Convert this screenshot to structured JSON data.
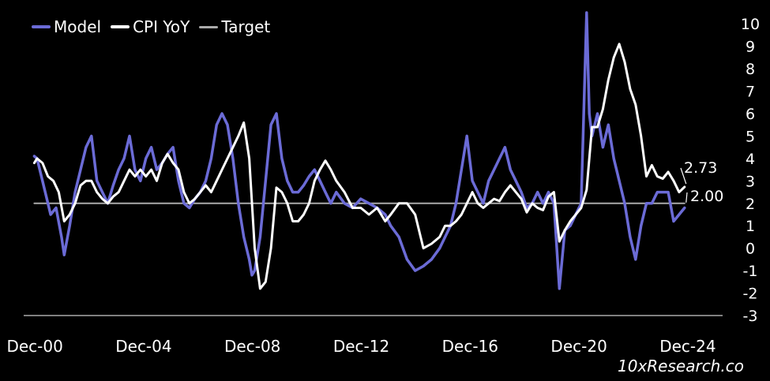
{
  "legend": {
    "model_label": "Model",
    "cpi_label": "CPI YoY",
    "target_label": "Target"
  },
  "watermark": "10xResearch.co",
  "chart_data": {
    "type": "line",
    "title": "",
    "xlabel": "",
    "ylabel": "",
    "x_tick_labels": [
      "Dec-00",
      "Dec-04",
      "Dec-08",
      "Dec-12",
      "Dec-16",
      "Dec-20",
      "Dec-24"
    ],
    "x_tick_years": [
      2000.92,
      2004.92,
      2008.92,
      2012.92,
      2016.92,
      2020.92,
      2024.92
    ],
    "xlim": [
      2000.8,
      2026.2
    ],
    "y_ticks": [
      -3,
      -2,
      -1,
      0,
      1,
      2,
      3,
      4,
      5,
      6,
      7,
      8,
      9,
      10
    ],
    "ylim": [
      -3,
      10.5
    ],
    "y_axis_side": "right",
    "grid": false,
    "legend_position": "top-left",
    "colors": {
      "model": "#6b6bd6",
      "cpi": "#ffffff",
      "target": "#aaaaaa",
      "background": "#000000"
    },
    "annotations": [
      {
        "text": "2.73",
        "x": 2024.6,
        "y": 3.3
      },
      {
        "text": "2.00",
        "x": 2024.6,
        "y": 2.5
      }
    ],
    "series": [
      {
        "name": "Model",
        "x": [
          2000.9,
          2001.0,
          2001.2,
          2001.4,
          2001.5,
          2001.7,
          2001.9,
          2002.0,
          2002.2,
          2002.4,
          2002.6,
          2002.8,
          2003.0,
          2003.2,
          2003.4,
          2003.6,
          2003.8,
          2004.0,
          2004.2,
          2004.4,
          2004.6,
          2004.8,
          2005.0,
          2005.2,
          2005.4,
          2005.6,
          2005.8,
          2006.0,
          2006.2,
          2006.4,
          2006.6,
          2006.8,
          2007.0,
          2007.2,
          2007.4,
          2007.6,
          2007.8,
          2008.0,
          2008.2,
          2008.4,
          2008.6,
          2008.8,
          2008.9,
          2009.0,
          2009.2,
          2009.4,
          2009.6,
          2009.8,
          2010.0,
          2010.2,
          2010.4,
          2010.6,
          2010.8,
          2011.0,
          2011.2,
          2011.4,
          2011.6,
          2011.8,
          2012.0,
          2012.3,
          2012.6,
          2012.9,
          2013.2,
          2013.5,
          2013.8,
          2014.0,
          2014.3,
          2014.6,
          2014.9,
          2015.2,
          2015.5,
          2015.8,
          2016.0,
          2016.2,
          2016.4,
          2016.6,
          2016.8,
          2017.0,
          2017.2,
          2017.4,
          2017.6,
          2017.8,
          2018.0,
          2018.2,
          2018.4,
          2018.6,
          2018.8,
          2019.0,
          2019.2,
          2019.4,
          2019.6,
          2019.8,
          2020.0,
          2020.2,
          2020.4,
          2020.6,
          2020.8,
          2021.0,
          2021.2,
          2021.3,
          2021.4,
          2021.6,
          2021.8,
          2022.0,
          2022.2,
          2022.4,
          2022.6,
          2022.8,
          2023.0,
          2023.2,
          2023.4,
          2023.6,
          2023.8,
          2024.0,
          2024.2,
          2024.4,
          2024.6,
          2024.8
        ],
        "values": [
          4.1,
          4.0,
          3.0,
          2.0,
          1.5,
          1.8,
          0.5,
          -0.3,
          1.0,
          2.5,
          3.5,
          4.5,
          5.0,
          3.0,
          2.5,
          2.0,
          2.8,
          3.5,
          4.0,
          5.0,
          3.5,
          3.0,
          4.0,
          4.5,
          3.5,
          3.8,
          4.2,
          4.5,
          3.0,
          2.0,
          1.8,
          2.2,
          2.5,
          3.0,
          4.0,
          5.5,
          6.0,
          5.5,
          4.0,
          2.0,
          0.5,
          -0.5,
          -1.2,
          -1.0,
          0.5,
          3.0,
          5.5,
          6.0,
          4.0,
          3.0,
          2.5,
          2.5,
          2.8,
          3.2,
          3.5,
          3.0,
          2.5,
          2.0,
          2.5,
          2.0,
          1.8,
          2.2,
          2.0,
          1.8,
          1.5,
          1.0,
          0.5,
          -0.5,
          -1.0,
          -0.8,
          -0.5,
          0.0,
          0.5,
          1.0,
          2.0,
          3.5,
          5.0,
          3.0,
          2.5,
          2.0,
          3.0,
          3.5,
          4.0,
          4.5,
          3.5,
          3.0,
          2.5,
          1.8,
          2.0,
          2.5,
          2.0,
          2.5,
          2.0,
          -1.8,
          0.8,
          1.0,
          1.5,
          2.0,
          10.5,
          6.0,
          5.0,
          6.0,
          4.5,
          5.5,
          4.0,
          3.0,
          2.0,
          0.5,
          -0.5,
          1.0,
          2.0,
          2.0,
          2.5,
          2.5,
          2.5,
          1.2,
          1.5,
          1.8
        ]
      },
      {
        "name": "CPI YoY",
        "x": [
          2000.9,
          2001.0,
          2001.2,
          2001.4,
          2001.6,
          2001.8,
          2002.0,
          2002.2,
          2002.4,
          2002.6,
          2002.8,
          2003.0,
          2003.2,
          2003.4,
          2003.6,
          2003.8,
          2004.0,
          2004.2,
          2004.4,
          2004.6,
          2004.8,
          2005.0,
          2005.2,
          2005.4,
          2005.6,
          2005.8,
          2006.0,
          2006.2,
          2006.4,
          2006.6,
          2006.8,
          2007.0,
          2007.2,
          2007.4,
          2007.6,
          2007.8,
          2008.0,
          2008.2,
          2008.4,
          2008.6,
          2008.8,
          2009.0,
          2009.2,
          2009.4,
          2009.6,
          2009.8,
          2010.0,
          2010.2,
          2010.4,
          2010.6,
          2010.8,
          2011.0,
          2011.2,
          2011.4,
          2011.6,
          2011.8,
          2012.0,
          2012.3,
          2012.6,
          2012.9,
          2013.2,
          2013.5,
          2013.8,
          2014.0,
          2014.3,
          2014.6,
          2014.9,
          2015.2,
          2015.5,
          2015.8,
          2016.0,
          2016.2,
          2016.4,
          2016.6,
          2016.8,
          2017.0,
          2017.2,
          2017.4,
          2017.6,
          2017.8,
          2018.0,
          2018.2,
          2018.4,
          2018.6,
          2018.8,
          2019.0,
          2019.2,
          2019.4,
          2019.6,
          2019.8,
          2020.0,
          2020.2,
          2020.4,
          2020.6,
          2020.8,
          2021.0,
          2021.2,
          2021.4,
          2021.6,
          2021.8,
          2022.0,
          2022.2,
          2022.4,
          2022.6,
          2022.8,
          2023.0,
          2023.2,
          2023.4,
          2023.6,
          2023.8,
          2024.0,
          2024.2,
          2024.4,
          2024.6,
          2024.8
        ],
        "values": [
          3.8,
          4.0,
          3.8,
          3.2,
          3.0,
          2.5,
          1.2,
          1.5,
          2.0,
          2.8,
          3.0,
          3.0,
          2.5,
          2.2,
          2.0,
          2.3,
          2.5,
          3.0,
          3.5,
          3.2,
          3.5,
          3.2,
          3.5,
          3.0,
          3.8,
          4.2,
          3.8,
          3.5,
          2.5,
          2.0,
          2.2,
          2.5,
          2.8,
          2.5,
          3.0,
          3.5,
          4.0,
          4.5,
          5.0,
          5.6,
          4.0,
          0.0,
          -1.8,
          -1.5,
          0.0,
          2.7,
          2.5,
          2.0,
          1.2,
          1.2,
          1.5,
          2.0,
          3.0,
          3.5,
          3.9,
          3.5,
          3.0,
          2.5,
          1.8,
          1.8,
          1.5,
          1.8,
          1.2,
          1.5,
          2.0,
          2.0,
          1.5,
          0.0,
          0.2,
          0.5,
          1.0,
          1.0,
          1.2,
          1.5,
          2.0,
          2.5,
          2.0,
          1.8,
          2.0,
          2.2,
          2.1,
          2.5,
          2.8,
          2.5,
          2.2,
          1.6,
          2.0,
          1.8,
          1.7,
          2.3,
          2.5,
          0.3,
          0.8,
          1.2,
          1.5,
          1.8,
          2.6,
          5.4,
          5.4,
          6.2,
          7.5,
          8.5,
          9.1,
          8.3,
          7.1,
          6.4,
          5.0,
          3.2,
          3.7,
          3.2,
          3.1,
          3.4,
          3.0,
          2.5,
          2.73
        ]
      },
      {
        "name": "Target",
        "x": [
          2000.9,
          2024.8
        ],
        "values": [
          2.0,
          2.0
        ]
      }
    ]
  }
}
